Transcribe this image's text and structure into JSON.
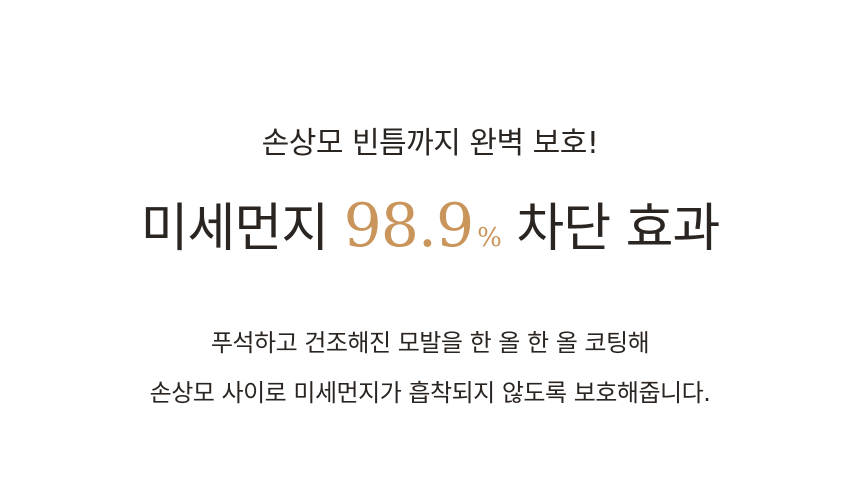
{
  "subtitle": "손상모 빈틈까지 완벽 보호!",
  "headline": {
    "prefix": "미세먼지",
    "number": "98.9",
    "percent": "%",
    "suffix": "차단 효과"
  },
  "body": {
    "line1": "푸석하고 건조해진 모발을 한 올 한 올 코팅해",
    "line2": "손상모 사이로 미세먼지가 흡착되지 않도록 보호해줍니다."
  },
  "colors": {
    "text": "#2b2522",
    "accent": "#c9955b",
    "background": "#ffffff"
  }
}
